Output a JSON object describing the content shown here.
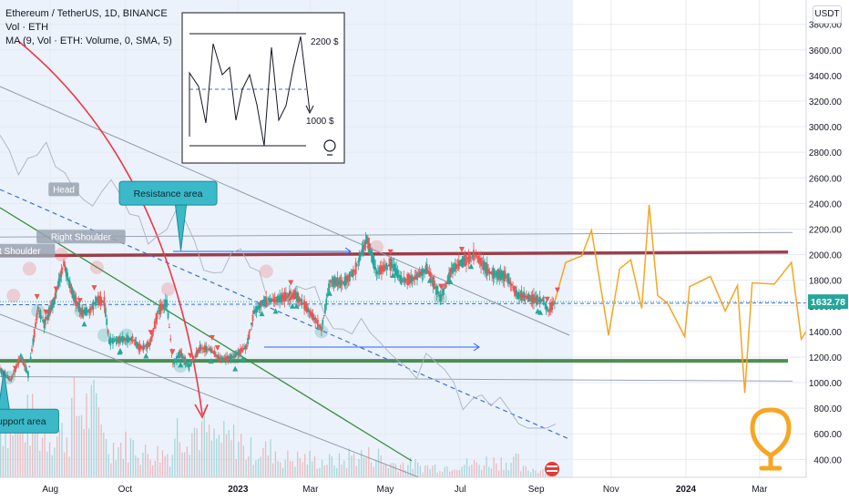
{
  "legend": {
    "symbol": "Ethereum / TetherUS, 1D, BINANCE",
    "volume": "Vol · ETH",
    "ma": "MA (9, Vol · ETH: Volume, 0, SMA, 5)"
  },
  "currency_button": "USDT",
  "colors": {
    "bg": "#ffffff",
    "plot_tint": "#dbe8f8",
    "up": "#26a69a",
    "down": "#ef5350",
    "projection": "#f5a623",
    "resistance_band": "#8e1f2a",
    "support_band": "#2e7d32",
    "trend_green": "#388e3c",
    "dashed_blue": "#3f6fd1",
    "arrow_red": "#f23645",
    "arrow_blue": "#2962ff",
    "callout": "#3bb9c9",
    "price_tag": "#26a69a",
    "bulb": "#f5a623"
  },
  "chart_data": {
    "type": "line",
    "title": "Ethereum / TetherUS, 1D, BINANCE",
    "xlabel": "",
    "ylabel": "",
    "y_ticks": [
      400,
      600,
      800,
      1000,
      1200,
      1400,
      1600,
      1800,
      2000,
      2200,
      2400,
      2600,
      2800,
      3000,
      3200,
      3400,
      3600,
      3800
    ],
    "y_tick_labels": [
      "400.00",
      "600.00",
      "800.00",
      "1000.00",
      "1200.00",
      "1400.00",
      "1600.00",
      "1800.00",
      "2000.00",
      "2200.00",
      "2400.00",
      "2600.00",
      "2800.00",
      "3000.00",
      "3200.00",
      "3400.00",
      "3600.00",
      "3800.00"
    ],
    "ylim": [
      260,
      3990
    ],
    "x_range": [
      "2022-06-21",
      "2024-04-08"
    ],
    "x_ticks": [
      {
        "date": "2022-08-01",
        "label": "Aug"
      },
      {
        "date": "2022-10-01",
        "label": "Oct"
      },
      {
        "date": "2023-01-01",
        "label": "2023"
      },
      {
        "date": "2023-03-01",
        "label": "Mar"
      },
      {
        "date": "2023-05-01",
        "label": "May"
      },
      {
        "date": "2023-07-01",
        "label": "Jul"
      },
      {
        "date": "2023-09-01",
        "label": "Sep"
      },
      {
        "date": "2023-11-01",
        "label": "Nov"
      },
      {
        "date": "2024-01-01",
        "label": "2024"
      },
      {
        "date": "2024-03-01",
        "label": "Mar"
      }
    ],
    "current_price": 1632.78,
    "current_price_label": "1632.78",
    "series": [
      {
        "kind": "price",
        "points": [
          [
            "2022-06-21",
            1100
          ],
          [
            "2022-06-30",
            1020
          ],
          [
            "2022-07-08",
            1210
          ],
          [
            "2022-07-14",
            1060
          ],
          [
            "2022-07-22",
            1580
          ],
          [
            "2022-07-27",
            1460
          ],
          [
            "2022-08-04",
            1640
          ],
          [
            "2022-08-12",
            1930
          ],
          [
            "2022-08-19",
            1700
          ],
          [
            "2022-08-26",
            1550
          ],
          [
            "2022-09-02",
            1560
          ],
          [
            "2022-09-08",
            1650
          ],
          [
            "2022-09-14",
            1630
          ],
          [
            "2022-09-18",
            1320
          ],
          [
            "2022-09-24",
            1330
          ],
          [
            "2022-09-30",
            1340
          ],
          [
            "2022-10-07",
            1340
          ],
          [
            "2022-10-13",
            1270
          ],
          [
            "2022-10-21",
            1300
          ],
          [
            "2022-10-28",
            1560
          ],
          [
            "2022-11-04",
            1620
          ],
          [
            "2022-11-09",
            1150
          ],
          [
            "2022-11-15",
            1230
          ],
          [
            "2022-11-22",
            1120
          ],
          [
            "2022-12-01",
            1270
          ],
          [
            "2022-12-09",
            1260
          ],
          [
            "2022-12-18",
            1180
          ],
          [
            "2022-12-28",
            1200
          ],
          [
            "2023-01-08",
            1280
          ],
          [
            "2023-01-14",
            1550
          ],
          [
            "2023-01-21",
            1630
          ],
          [
            "2023-02-02",
            1650
          ],
          [
            "2023-02-16",
            1690
          ],
          [
            "2023-02-24",
            1610
          ],
          [
            "2023-03-10",
            1420
          ],
          [
            "2023-03-17",
            1790
          ],
          [
            "2023-03-28",
            1780
          ],
          [
            "2023-04-06",
            1870
          ],
          [
            "2023-04-16",
            2120
          ],
          [
            "2023-04-24",
            1860
          ],
          [
            "2023-05-06",
            1930
          ],
          [
            "2023-05-14",
            1800
          ],
          [
            "2023-05-24",
            1810
          ],
          [
            "2023-06-04",
            1890
          ],
          [
            "2023-06-15",
            1660
          ],
          [
            "2023-06-24",
            1880
          ],
          [
            "2023-07-04",
            1950
          ],
          [
            "2023-07-13",
            2000
          ],
          [
            "2023-07-25",
            1860
          ],
          [
            "2023-08-08",
            1830
          ],
          [
            "2023-08-17",
            1680
          ],
          [
            "2023-08-20",
            1680
          ],
          [
            "2023-08-31",
            1650
          ],
          [
            "2023-09-07",
            1640
          ],
          [
            "2023-09-11",
            1560
          ],
          [
            "2023-09-16",
            1632
          ]
        ]
      },
      {
        "kind": "projection",
        "points": [
          [
            "2023-09-16",
            1632
          ],
          [
            "2023-09-25",
            1940
          ],
          [
            "2023-10-08",
            1990
          ],
          [
            "2023-10-16",
            2190
          ],
          [
            "2023-10-30",
            1370
          ],
          [
            "2023-11-08",
            1890
          ],
          [
            "2023-11-17",
            1960
          ],
          [
            "2023-11-26",
            1580
          ],
          [
            "2023-12-02",
            2390
          ],
          [
            "2023-12-09",
            1680
          ],
          [
            "2023-12-17",
            1620
          ],
          [
            "2023-12-31",
            1360
          ],
          [
            "2024-01-04",
            1750
          ],
          [
            "2024-01-21",
            1830
          ],
          [
            "2024-02-02",
            1560
          ],
          [
            "2024-02-12",
            1760
          ],
          [
            "2024-02-18",
            920
          ],
          [
            "2024-02-24",
            1780
          ],
          [
            "2024-03-13",
            1770
          ],
          [
            "2024-03-27",
            1940
          ],
          [
            "2024-04-04",
            1340
          ],
          [
            "2024-04-08",
            1400
          ]
        ]
      }
    ],
    "levels": {
      "resistance": 2020,
      "support": 1170,
      "upper_gray": 2130,
      "lower_gray": 1040,
      "dashed_mid": 1580,
      "lower_thin": 1130
    },
    "volume": {
      "ylim": [
        0,
        260000
      ],
      "approx_daily": [
        210000,
        160000,
        250000,
        120000,
        90000,
        180000,
        140000,
        100000,
        70000,
        60000,
        80000,
        50000,
        40000,
        50000,
        60000,
        30000
      ]
    },
    "annotations": [
      {
        "id": "head",
        "text": "Head",
        "date": "2022-08-12",
        "value": 2500
      },
      {
        "id": "left-shoulder",
        "text": "Left Shoulder",
        "date": "2022-07-02",
        "value": 2020
      },
      {
        "id": "right-shoulder",
        "text": "Right Shoulder",
        "date": "2022-08-26",
        "value": 2130
      },
      {
        "id": "resistance-area",
        "text": "Resistance area",
        "date": "2022-11-05",
        "value": 2480
      },
      {
        "id": "support-area",
        "text": "Support area",
        "date": "2022-07-06",
        "value": 700
      }
    ],
    "inset": {
      "label_high": "2200 $",
      "label_low": "1000 $"
    }
  }
}
